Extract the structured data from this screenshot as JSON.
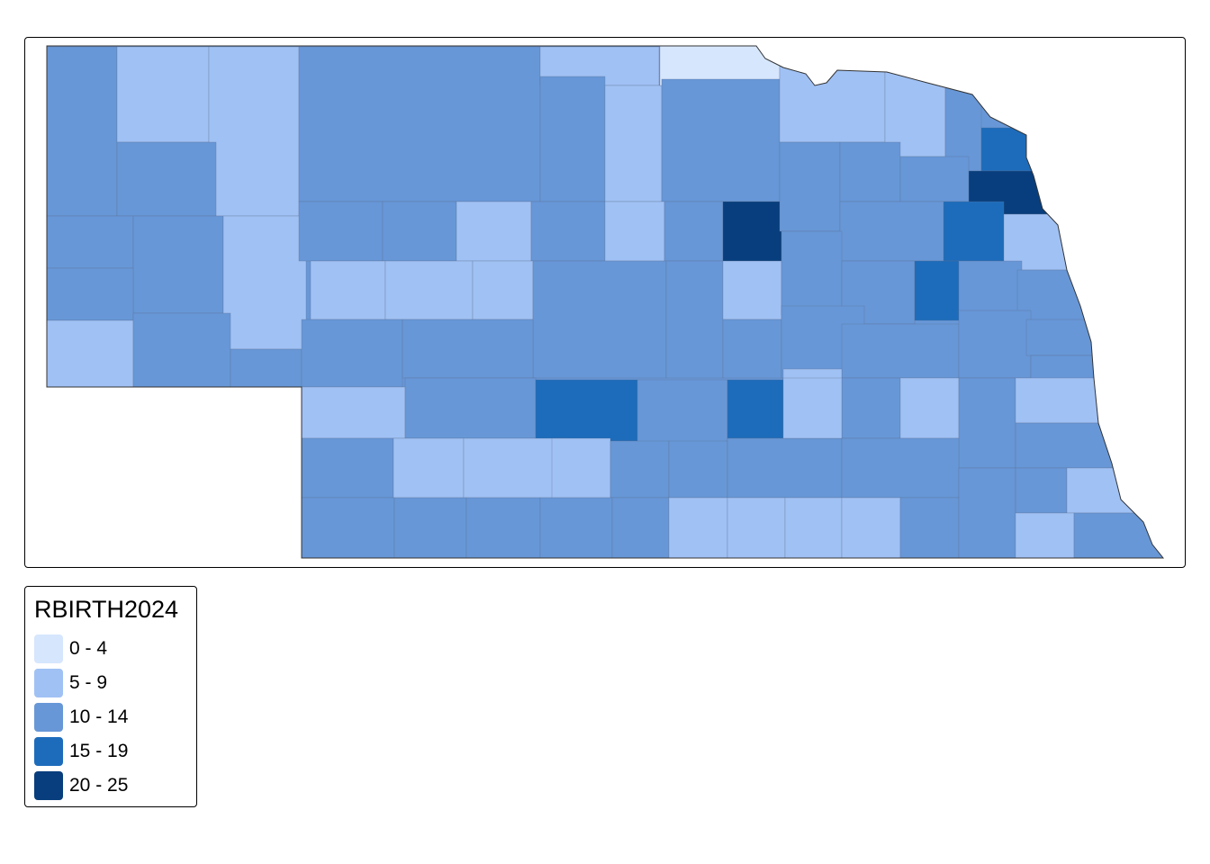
{
  "legend": {
    "title": "RBIRTH2024",
    "classes": [
      {
        "label": "0 - 4",
        "color": "#D6E6FD"
      },
      {
        "label": "5 - 9",
        "color": "#A0C1F4"
      },
      {
        "label": "10 - 14",
        "color": "#6797D7"
      },
      {
        "label": "15 - 19",
        "color": "#1D6CBB"
      },
      {
        "label": "20 - 25",
        "color": "#083E7D"
      }
    ]
  },
  "map": {
    "variable": "RBIRTH2024",
    "region": "Nebraska counties",
    "county_classes": [
      2,
      1,
      1,
      2,
      1,
      2,
      1,
      0,
      2,
      1,
      1,
      2,
      3,
      4,
      2,
      2,
      2,
      1,
      2,
      1,
      2,
      2,
      2,
      2,
      1,
      2,
      1,
      2,
      4,
      2,
      2,
      2,
      3,
      1,
      2,
      1,
      1,
      1,
      2,
      2,
      1,
      2,
      2,
      3,
      2,
      2,
      2,
      2,
      2,
      2,
      2,
      2,
      2,
      2,
      1,
      2,
      3,
      2,
      3,
      1,
      2,
      1,
      2,
      1,
      2,
      1,
      1,
      1,
      2,
      2,
      2,
      2,
      2,
      2,
      2,
      2,
      2,
      2,
      1,
      1,
      1,
      1,
      2,
      2,
      2,
      1,
      1,
      2,
      1
    ]
  }
}
